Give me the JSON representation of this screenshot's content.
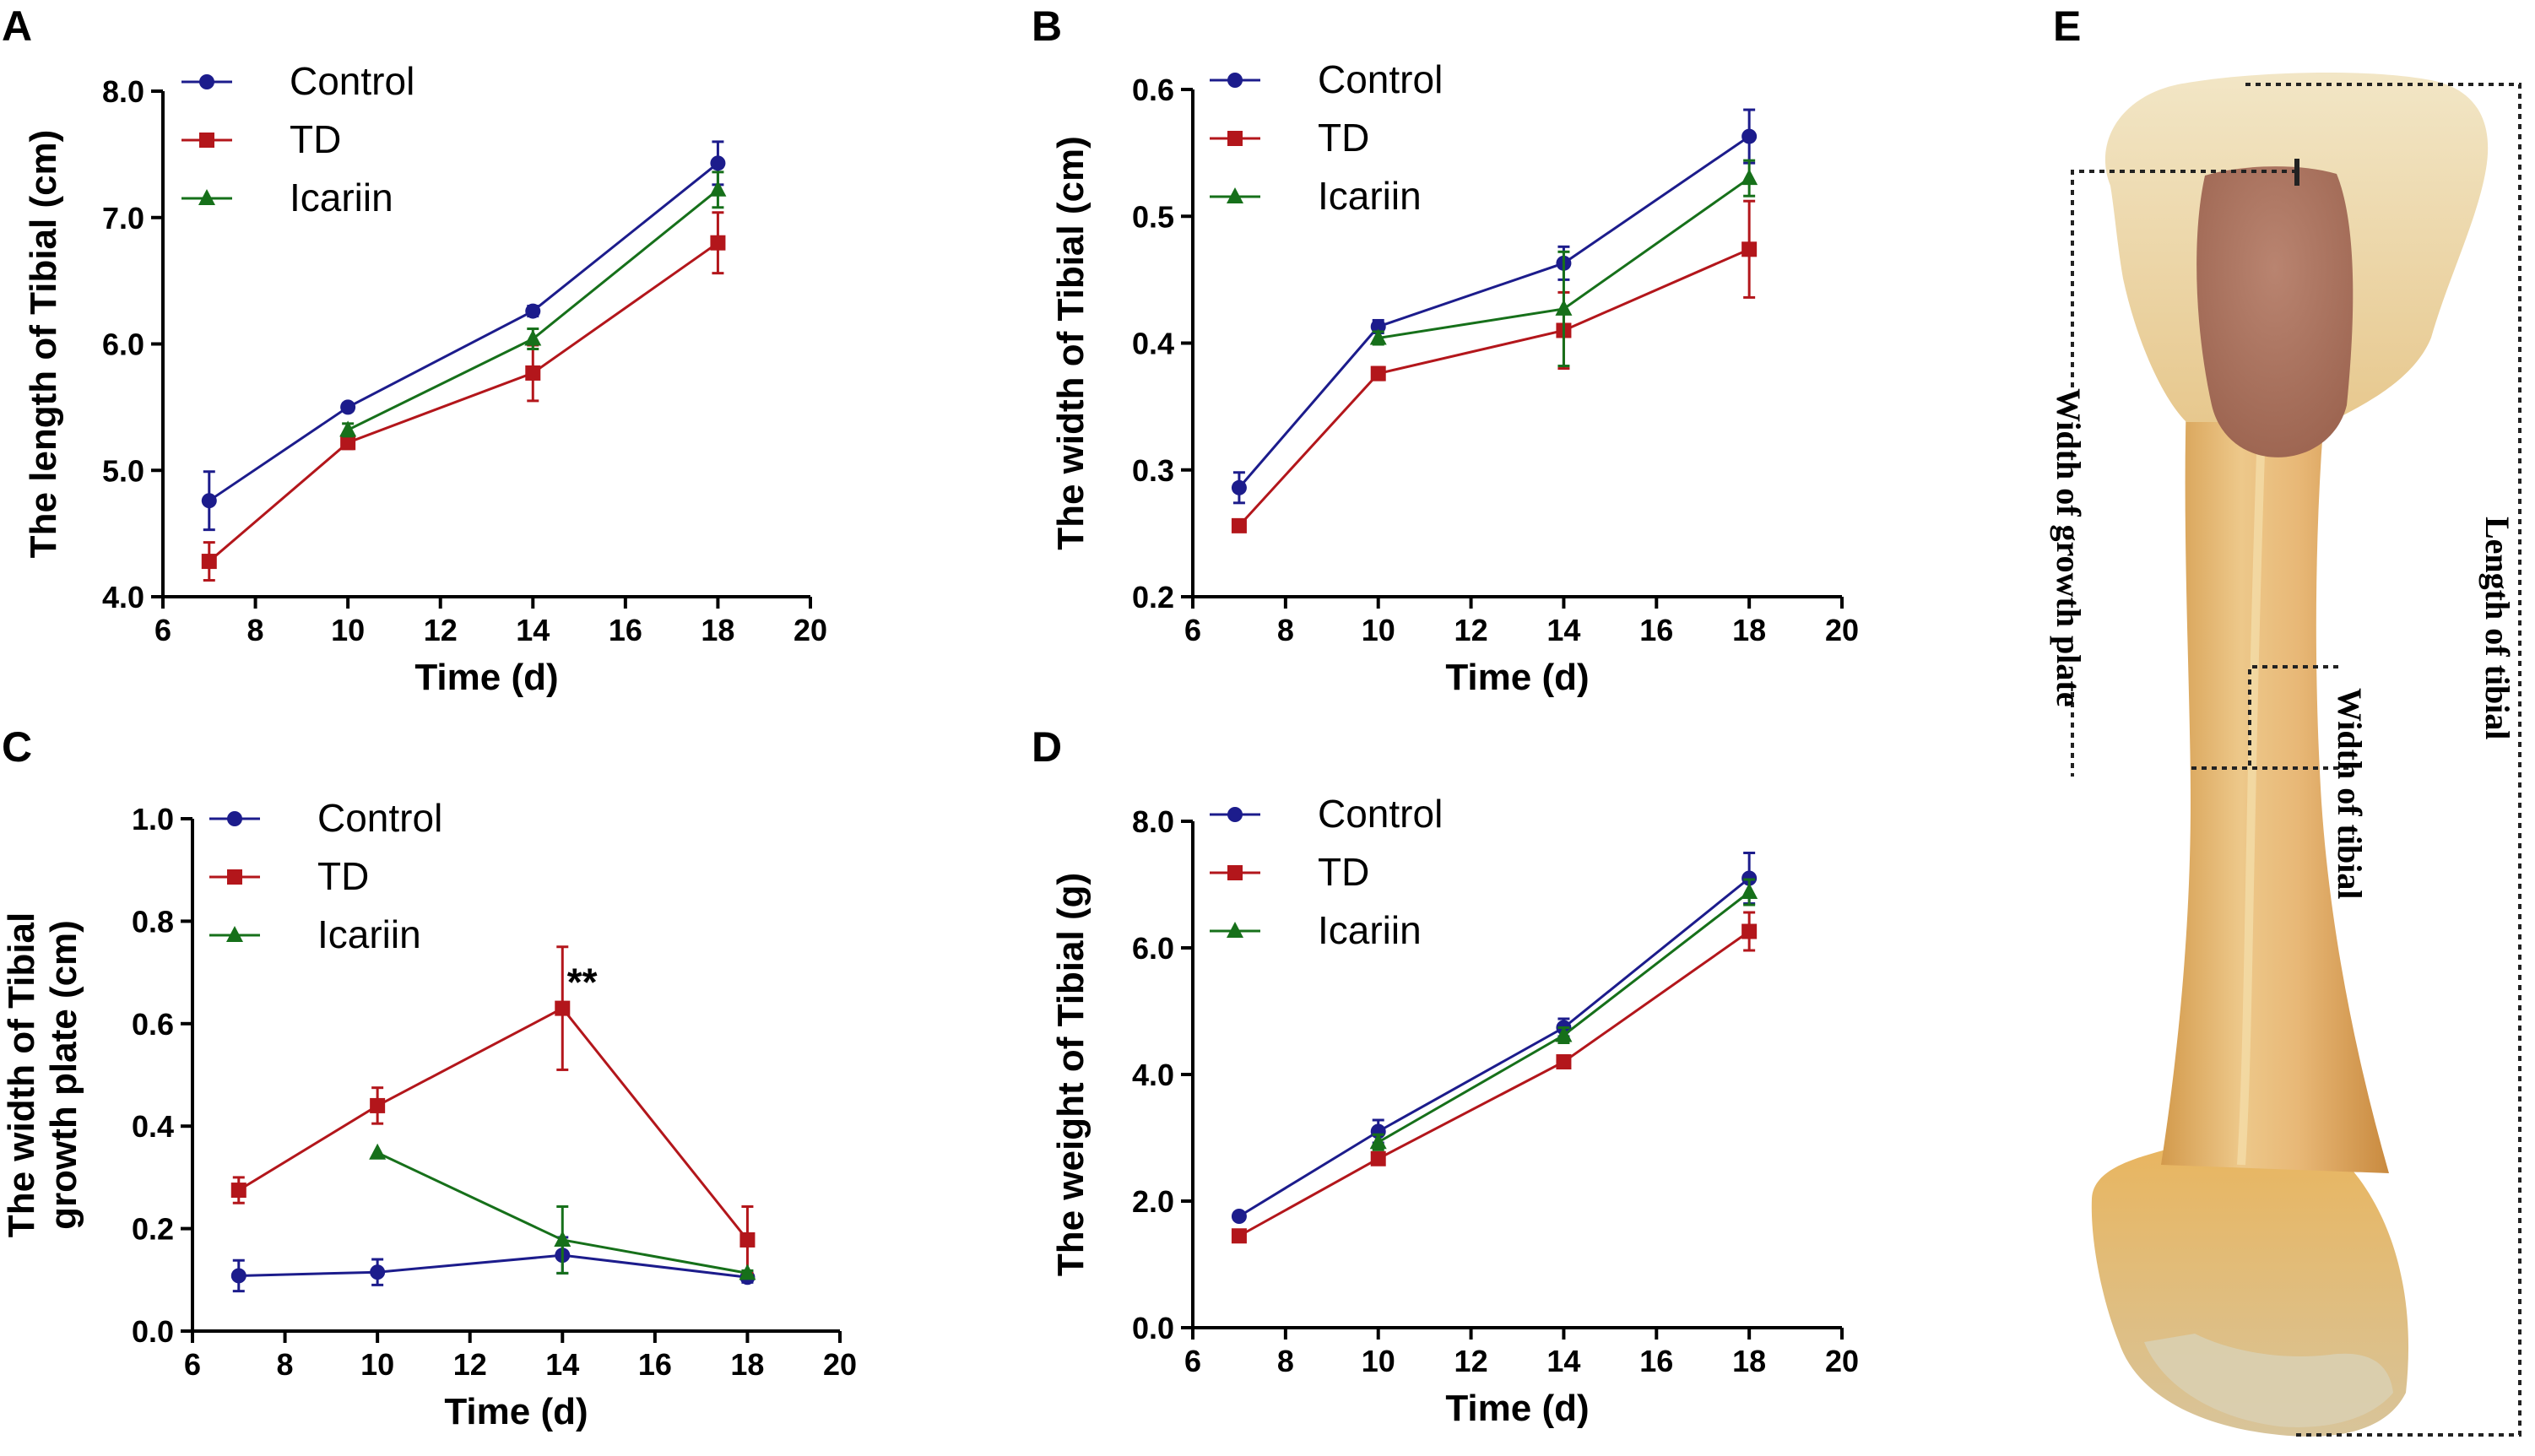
{
  "colors": {
    "Control": "#1c1c8c",
    "TD": "#b3161b",
    "Icariin": "#16701a"
  },
  "chart_data": [
    {
      "panel": "A",
      "type": "line",
      "xlabel": "Time (d)",
      "ylabel": "The length of Tibial (cm)",
      "xlim": [
        6,
        20
      ],
      "ylim": [
        4.0,
        8.0
      ],
      "xticks": [
        6,
        8,
        10,
        12,
        14,
        16,
        18,
        20
      ],
      "yticks": [
        "4.0",
        "5.0",
        "6.0",
        "7.0",
        "8.0"
      ],
      "legend": [
        "Control",
        "TD",
        "Icariin"
      ],
      "series": [
        {
          "name": "Control",
          "marker": "circle",
          "x": [
            7,
            10,
            14,
            18
          ],
          "y": [
            4.76,
            5.5,
            6.26,
            7.43
          ],
          "err": [
            0.23,
            0.03,
            0.04,
            0.17
          ]
        },
        {
          "name": "TD",
          "marker": "square",
          "x": [
            7,
            10,
            14,
            18
          ],
          "y": [
            4.28,
            5.22,
            5.77,
            6.8
          ],
          "err": [
            0.15,
            0.05,
            0.22,
            0.24
          ]
        },
        {
          "name": "Icariin",
          "marker": "triangle",
          "x": [
            10,
            14,
            18
          ],
          "y": [
            5.32,
            6.04,
            7.22
          ],
          "err": [
            0.05,
            0.08,
            0.14
          ]
        }
      ],
      "annotations": []
    },
    {
      "panel": "B",
      "type": "line",
      "xlabel": "Time (d)",
      "ylabel": "The width of Tibial (cm)",
      "xlim": [
        6,
        20
      ],
      "ylim": [
        0.2,
        0.6
      ],
      "xticks": [
        6,
        8,
        10,
        12,
        14,
        16,
        18,
        20
      ],
      "yticks": [
        "0.2",
        "0.3",
        "0.4",
        "0.5",
        "0.6"
      ],
      "legend": [
        "Control",
        "TD",
        "Icariin"
      ],
      "series": [
        {
          "name": "Control",
          "marker": "circle",
          "x": [
            7,
            10,
            14,
            18
          ],
          "y": [
            0.286,
            0.413,
            0.463,
            0.563
          ],
          "err": [
            0.012,
            0.005,
            0.013,
            0.021
          ]
        },
        {
          "name": "TD",
          "marker": "square",
          "x": [
            7,
            10,
            14,
            18
          ],
          "y": [
            0.256,
            0.376,
            0.41,
            0.474
          ],
          "err": [
            0.004,
            0.005,
            0.03,
            0.038
          ]
        },
        {
          "name": "Icariin",
          "marker": "triangle",
          "x": [
            10,
            14,
            18
          ],
          "y": [
            0.404,
            0.427,
            0.53
          ],
          "err": [
            0.005,
            0.045,
            0.014
          ]
        }
      ],
      "annotations": []
    },
    {
      "panel": "C",
      "type": "line",
      "xlabel": "Time (d)",
      "ylabel": "The width of Tibial growth plate (cm)",
      "ylabel_lines": [
        "The width of Tibial",
        "growth plate (cm)"
      ],
      "xlim": [
        6,
        20
      ],
      "ylim": [
        0.0,
        1.0
      ],
      "xticks": [
        6,
        8,
        10,
        12,
        14,
        16,
        18,
        20
      ],
      "yticks": [
        "0.0",
        "0.2",
        "0.4",
        "0.6",
        "0.8",
        "1.0"
      ],
      "legend": [
        "Control",
        "TD",
        "Icariin"
      ],
      "series": [
        {
          "name": "Control",
          "marker": "circle",
          "x": [
            7,
            10,
            14,
            18
          ],
          "y": [
            0.108,
            0.115,
            0.148,
            0.105
          ],
          "err": [
            0.03,
            0.025,
            0.035,
            0.01
          ]
        },
        {
          "name": "TD",
          "marker": "square",
          "x": [
            7,
            10,
            14,
            18
          ],
          "y": [
            0.275,
            0.44,
            0.63,
            0.178
          ],
          "err": [
            0.025,
            0.035,
            0.12,
            0.065
          ]
        },
        {
          "name": "Icariin",
          "marker": "triangle",
          "x": [
            10,
            14,
            18
          ],
          "y": [
            0.348,
            0.178,
            0.113
          ],
          "err": [
            0.0,
            0.065,
            0.005
          ]
        }
      ],
      "annotations": [
        {
          "text": "**",
          "x": 14.1,
          "y": 0.655
        }
      ]
    },
    {
      "panel": "D",
      "type": "line",
      "xlabel": "Time (d)",
      "ylabel": "The weight of Tibial (g)",
      "xlim": [
        6,
        20
      ],
      "ylim": [
        0.0,
        8.0
      ],
      "xticks": [
        6,
        8,
        10,
        12,
        14,
        16,
        18,
        20
      ],
      "yticks": [
        "0.0",
        "2.0",
        "4.0",
        "6.0",
        "8.0"
      ],
      "legend": [
        "Control",
        "TD",
        "Icariin"
      ],
      "series": [
        {
          "name": "Control",
          "marker": "circle",
          "x": [
            7,
            10,
            14,
            18
          ],
          "y": [
            1.76,
            3.1,
            4.74,
            7.1
          ],
          "err": [
            0.06,
            0.18,
            0.14,
            0.4
          ]
        },
        {
          "name": "TD",
          "marker": "square",
          "x": [
            7,
            10,
            14,
            18
          ],
          "y": [
            1.45,
            2.67,
            4.2,
            6.26
          ],
          "err": [
            0.05,
            0.08,
            0.08,
            0.3
          ]
        },
        {
          "name": "Icariin",
          "marker": "triangle",
          "x": [
            10,
            14,
            18
          ],
          "y": [
            2.93,
            4.62,
            6.88
          ],
          "err": [
            0.12,
            0.12,
            0.2
          ]
        }
      ],
      "annotations": []
    }
  ],
  "photo": {
    "panel": "E",
    "labels": {
      "length": "Length of tibial",
      "growth_plate": "Width of growth plate",
      "width": "Width of tibial"
    }
  }
}
